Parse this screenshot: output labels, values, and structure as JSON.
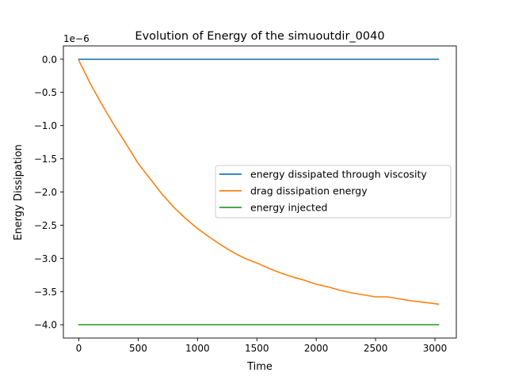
{
  "chart_data": {
    "type": "line",
    "title": "Evolution of Energy of the simuoutdir_0040",
    "xlabel": "Time",
    "ylabel": "Energy Dissipation",
    "y_offset_label": "1e−6",
    "xlim": [
      -130,
      3180
    ],
    "ylim": [
      -4.2,
      0.2
    ],
    "x_ticks": [
      0,
      500,
      1000,
      1500,
      2000,
      2500,
      3000
    ],
    "x_tick_labels": [
      "0",
      "500",
      "1000",
      "1500",
      "2000",
      "2500",
      "3000"
    ],
    "y_ticks": [
      0.0,
      -0.5,
      -1.0,
      -1.5,
      -2.0,
      -2.5,
      -3.0,
      -3.5,
      -4.0
    ],
    "y_tick_labels": [
      "0.0",
      "−0.5",
      "−1.0",
      "−1.5",
      "−2.0",
      "−2.5",
      "−3.0",
      "−3.5",
      "−4.0"
    ],
    "grid": false,
    "legend_position": "center-right",
    "series": [
      {
        "name": "energy dissipated through viscosity",
        "color": "#1f77b4",
        "x": [
          0,
          3030
        ],
        "y": [
          0.0,
          0.0
        ]
      },
      {
        "name": "drag dissipation energy",
        "color": "#ff7f0e",
        "x": [
          0,
          50,
          100,
          200,
          300,
          400,
          500,
          600,
          700,
          800,
          900,
          1000,
          1100,
          1200,
          1300,
          1400,
          1500,
          1600,
          1700,
          1800,
          1900,
          2000,
          2100,
          2200,
          2300,
          2400,
          2500,
          2600,
          2700,
          2800,
          2900,
          3030
        ],
        "y": [
          -0.02,
          -0.2,
          -0.38,
          -0.7,
          -1.0,
          -1.28,
          -1.57,
          -1.8,
          -2.03,
          -2.23,
          -2.4,
          -2.55,
          -2.68,
          -2.8,
          -2.91,
          -3.0,
          -3.07,
          -3.15,
          -3.22,
          -3.28,
          -3.33,
          -3.39,
          -3.43,
          -3.48,
          -3.52,
          -3.55,
          -3.58,
          -3.58,
          -3.61,
          -3.64,
          -3.66,
          -3.69
        ]
      },
      {
        "name": "energy injected",
        "color": "#2ca02c",
        "x": [
          0,
          3030
        ],
        "y": [
          -4.0,
          -4.0
        ]
      }
    ]
  }
}
